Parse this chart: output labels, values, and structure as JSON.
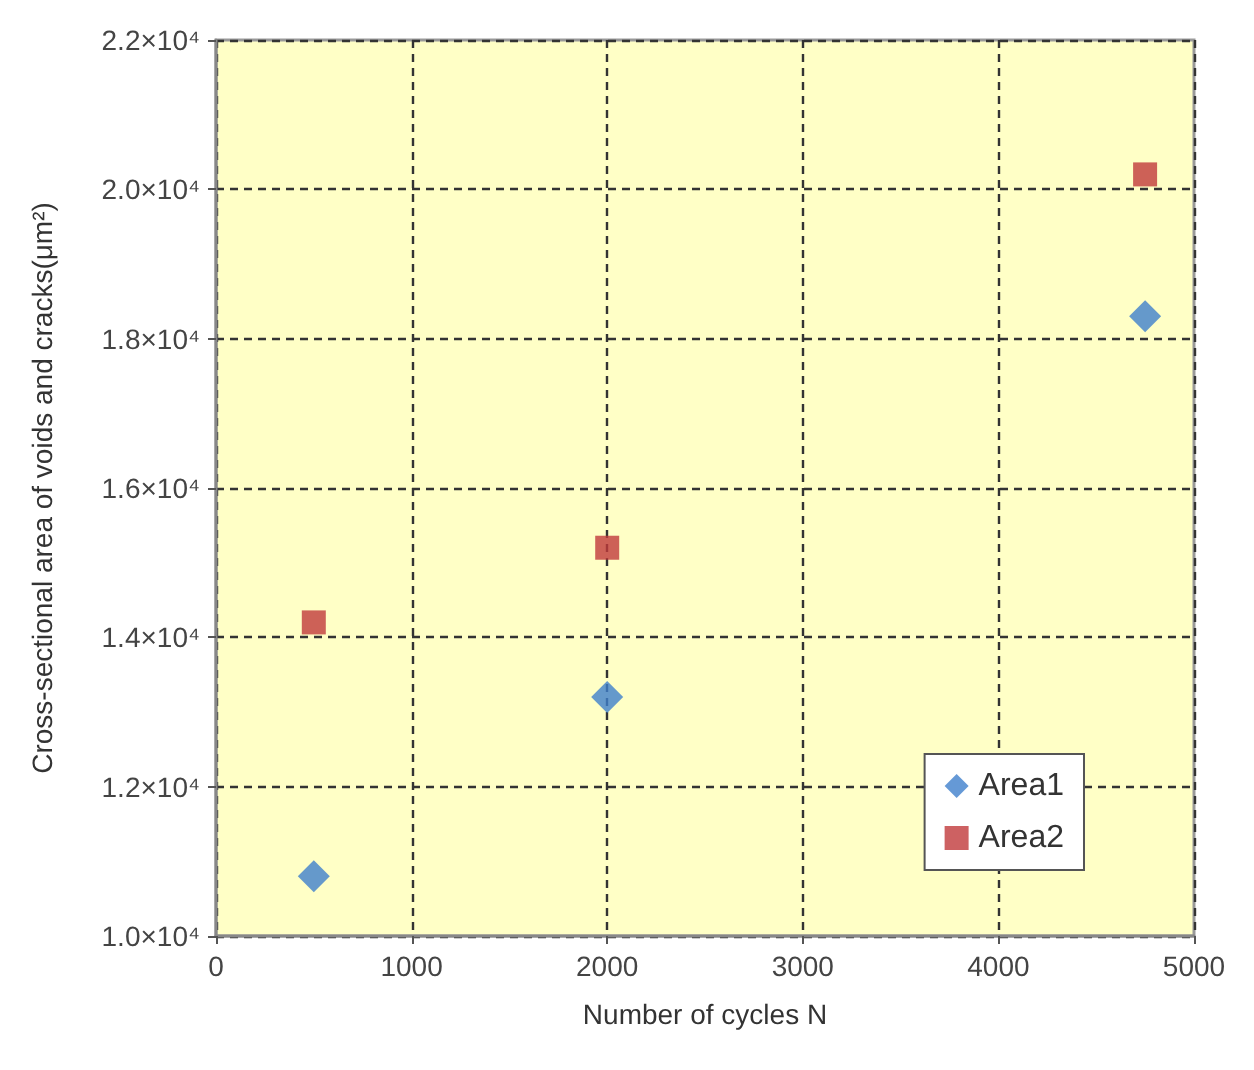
{
  "chart_data": {
    "type": "scatter",
    "xlabel": "Number of cycles N",
    "ylabel": "Cross-sectional area of voids and cracks(μm²)",
    "xlim": [
      0,
      5000
    ],
    "xticks": [
      0,
      1000,
      2000,
      3000,
      4000,
      5000
    ],
    "ylim": [
      10000,
      22000
    ],
    "yticks": [
      {
        "value": 10000,
        "label": "1.0×10⁴"
      },
      {
        "value": 12000,
        "label": "1.2×10⁴"
      },
      {
        "value": 14000,
        "label": "1.4×10⁴"
      },
      {
        "value": 16000,
        "label": "1.6×10⁴"
      },
      {
        "value": 18000,
        "label": "1.8×10⁴"
      },
      {
        "value": 20000,
        "label": "2.0×10⁴"
      },
      {
        "value": 22000,
        "label": "2.2×10⁴"
      }
    ],
    "grid": true,
    "legend": "bottom right",
    "series": [
      {
        "name": "Area1",
        "color": "#3f7fcc",
        "marker": "diamond",
        "x": [
          500,
          2000,
          4750
        ],
        "values": [
          10800,
          13200,
          18300
        ]
      },
      {
        "name": "Area2",
        "color": "#c0393b",
        "marker": "square",
        "x": [
          500,
          2000,
          4750
        ],
        "values": [
          14200,
          15200,
          20200
        ]
      }
    ]
  }
}
